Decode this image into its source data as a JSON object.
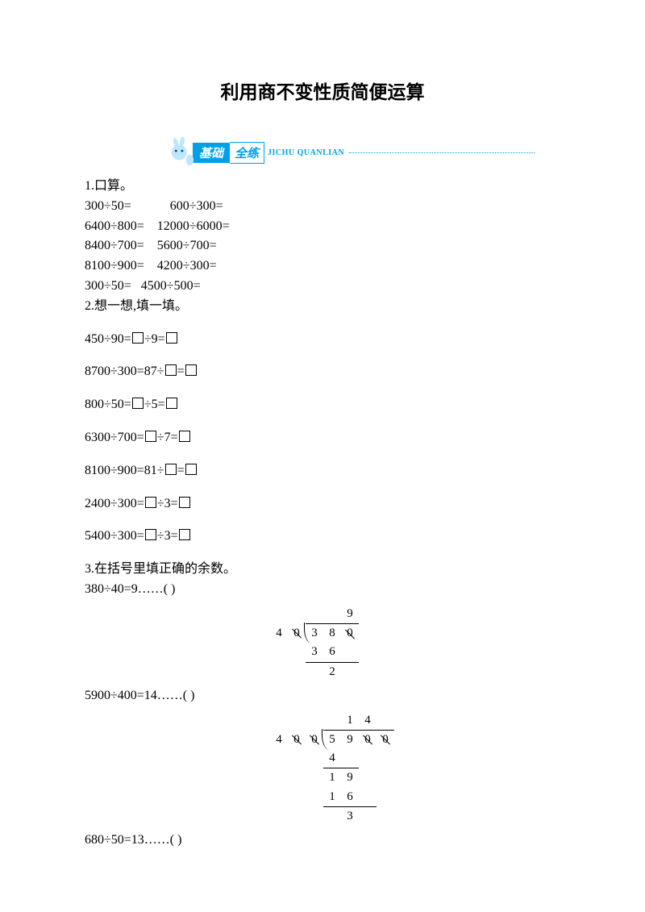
{
  "title": "利用商不变性质简便运算",
  "banner": {
    "blue": "基础",
    "white": "全练",
    "pinyin": "JICHU QUANLIAN",
    "blue_bg": "#00a0e9",
    "text_color": "#ffffff"
  },
  "q1": {
    "heading": "1.口算。",
    "rows": [
      "300÷50=            600÷300=",
      "6400÷800=    12000÷6000=",
      "8400÷700=    5600÷700=",
      "8100÷900=    4200÷300=",
      "300÷50=   4500÷500="
    ]
  },
  "q2": {
    "heading": "2.想一想,填一填。",
    "items": [
      {
        "pre": "450÷90=",
        "mid": "÷9="
      },
      {
        "pre": "8700÷300=87÷",
        "mid": "="
      },
      {
        "pre": "800÷50=",
        "mid": "÷5="
      },
      {
        "pre": "6300÷700=",
        "mid": "÷7="
      },
      {
        "pre": "8100÷900=81÷",
        "mid": "="
      },
      {
        "pre": "2400÷300=",
        "mid": "÷3="
      },
      {
        "pre": "5400÷300=",
        "mid": "÷3="
      }
    ]
  },
  "q3": {
    "heading": "3.在括号里填正确的余数。",
    "items": [
      {
        "expr": "380÷40=9……(      )",
        "div": {
          "divisor": [
            "4",
            "0"
          ],
          "dividend": [
            "3",
            "8",
            "0"
          ],
          "quotient_row": [
            "",
            "",
            "9"
          ],
          "lines": [
            {
              "cells": [
                "3",
                "6",
                ""
              ],
              "border": true,
              "span": [
                0,
                1
              ]
            },
            {
              "cells": [
                "",
                "2",
                ""
              ],
              "border": false
            }
          ]
        }
      },
      {
        "expr": "5900÷400=14……(      )",
        "div": {
          "divisor": [
            "4",
            "0",
            "0"
          ],
          "dividend": [
            "5",
            "9",
            "0",
            "0"
          ],
          "quotient_row": [
            "",
            "1",
            "4",
            ""
          ],
          "lines": [
            {
              "cells": [
                "4",
                "",
                "",
                ""
              ],
              "border": true,
              "span": [
                0,
                0
              ]
            },
            {
              "cells": [
                "1",
                "9",
                "",
                ""
              ],
              "border": false
            },
            {
              "cells": [
                "1",
                "6",
                "",
                ""
              ],
              "border": true,
              "span": [
                0,
                1
              ]
            },
            {
              "cells": [
                "",
                "3",
                "",
                ""
              ],
              "border": false
            }
          ]
        }
      },
      {
        "expr": "680÷50=13……(      )"
      }
    ]
  },
  "colors": {
    "page_bg": "#ffffff",
    "text": "#000000",
    "accent": "#00a0e9"
  }
}
